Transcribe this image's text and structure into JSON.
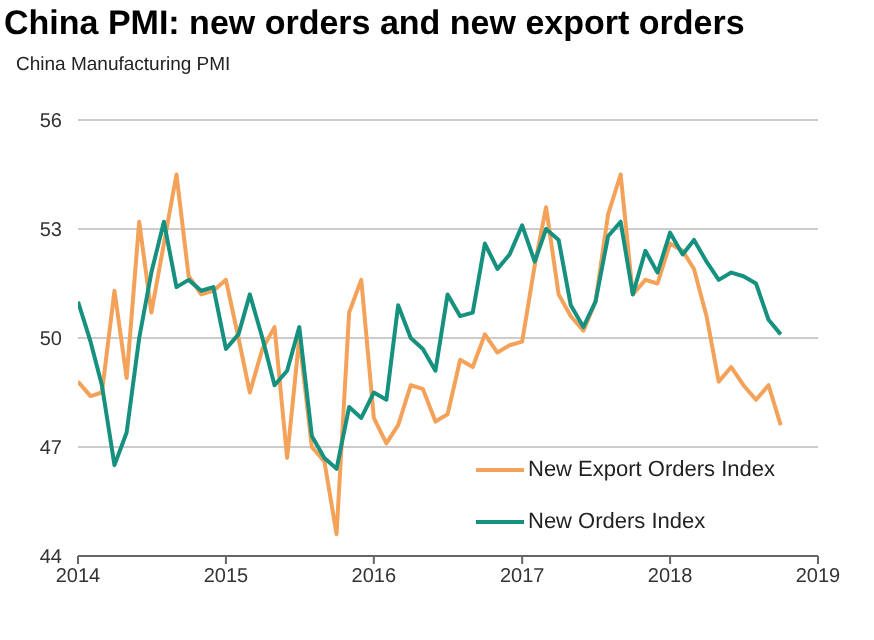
{
  "chart_data": {
    "type": "line",
    "title": "China PMI: new orders and new export orders",
    "annotations": [
      "China Manufacturing PMI"
    ],
    "x": [
      "2014-01",
      "2014-02",
      "2014-03",
      "2014-04",
      "2014-05",
      "2014-06",
      "2014-07",
      "2014-08",
      "2014-09",
      "2014-10",
      "2014-11",
      "2014-12",
      "2015-01",
      "2015-02",
      "2015-03",
      "2015-04",
      "2015-05",
      "2015-06",
      "2015-07",
      "2015-08",
      "2015-09",
      "2015-10",
      "2015-11",
      "2015-12",
      "2016-01",
      "2016-02",
      "2016-03",
      "2016-04",
      "2016-05",
      "2016-06",
      "2016-07",
      "2016-08",
      "2016-09",
      "2016-10",
      "2016-11",
      "2016-12",
      "2017-01",
      "2017-02",
      "2017-03",
      "2017-04",
      "2017-05",
      "2017-06",
      "2017-07",
      "2017-08",
      "2017-09",
      "2017-10",
      "2017-11",
      "2017-12",
      "2018-01",
      "2018-02",
      "2018-03",
      "2018-04",
      "2018-05",
      "2018-06",
      "2018-07",
      "2018-08",
      "2018-09",
      "2018-10"
    ],
    "series": [
      {
        "name": "New Export Orders Index",
        "color": "#f4a259",
        "values": [
          48.8,
          48.4,
          48.5,
          51.3,
          48.9,
          53.2,
          50.7,
          52.6,
          54.5,
          51.7,
          51.2,
          51.3,
          51.6,
          50.0,
          48.5,
          49.7,
          50.3,
          46.7,
          50.0,
          47.0,
          46.6,
          44.6,
          50.7,
          51.6,
          47.8,
          47.1,
          47.6,
          48.7,
          48.6,
          47.7,
          47.9,
          49.4,
          49.2,
          50.1,
          49.6,
          49.8,
          49.9,
          52.0,
          53.6,
          51.2,
          50.6,
          50.2,
          51.0,
          53.4,
          54.5,
          51.2,
          51.6,
          51.5,
          52.6,
          52.4,
          51.9,
          50.6,
          48.8,
          49.2,
          48.7,
          48.3,
          48.7,
          47.6
        ]
      },
      {
        "name": "New Orders Index",
        "color": "#16907f",
        "values": [
          51.0,
          49.9,
          48.7,
          46.5,
          47.4,
          50.0,
          51.8,
          53.2,
          51.4,
          51.6,
          51.3,
          51.4,
          49.7,
          50.1,
          51.2,
          50.0,
          48.7,
          49.1,
          50.3,
          47.3,
          46.7,
          46.4,
          48.1,
          47.8,
          48.5,
          48.3,
          50.9,
          50.0,
          49.7,
          49.1,
          51.2,
          50.6,
          50.7,
          52.6,
          51.9,
          52.3,
          53.1,
          52.1,
          53.0,
          52.7,
          50.9,
          50.3,
          51.0,
          52.8,
          53.2,
          51.2,
          52.4,
          51.8,
          52.9,
          52.3,
          52.7,
          52.1,
          51.6,
          51.8,
          51.7,
          51.5,
          50.5,
          50.1
        ]
      }
    ],
    "xlim": [
      "2014-01",
      "2019-01"
    ],
    "xticks": [
      {
        "value": "2014",
        "label": "2014"
      },
      {
        "value": "2015",
        "label": "2015"
      },
      {
        "value": "2016",
        "label": "2016"
      },
      {
        "value": "2017",
        "label": "2017"
      },
      {
        "value": "2018",
        "label": "2018"
      },
      {
        "value": "2019",
        "label": "2019"
      }
    ],
    "ylim": [
      44,
      56
    ],
    "yticks": [
      44,
      47,
      50,
      53,
      56
    ],
    "grid": "y",
    "legend": "bottom right",
    "marker": "none",
    "line_style": "solid"
  }
}
